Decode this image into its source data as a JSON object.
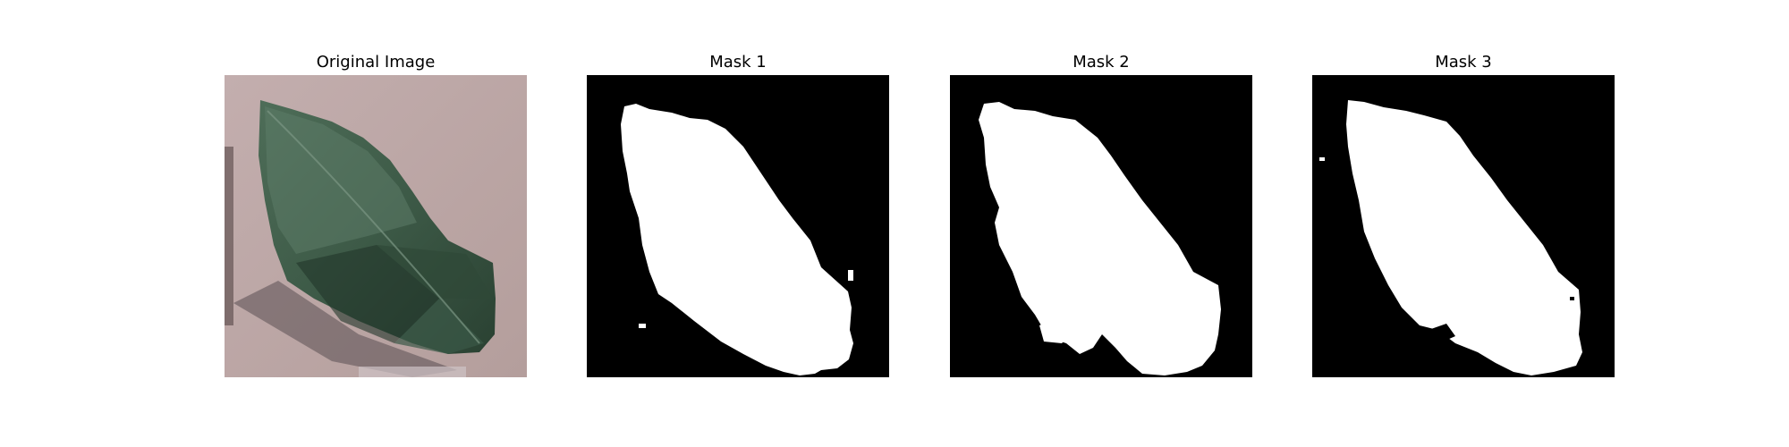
{
  "figure": {
    "panels": [
      {
        "title": "Original Image",
        "kind": "photo"
      },
      {
        "title": "Mask 1",
        "kind": "mask"
      },
      {
        "title": "Mask 2",
        "kind": "mask"
      },
      {
        "title": "Mask 3",
        "kind": "mask"
      }
    ],
    "colors": {
      "background": "#ffffff",
      "mask_background": "#000000",
      "mask_foreground": "#ffffff",
      "photo_backdrop": "#bfa9a8",
      "leaf_dark": "#25392d",
      "leaf_mid": "#3f5e4a",
      "leaf_light": "#6b8a76"
    }
  }
}
